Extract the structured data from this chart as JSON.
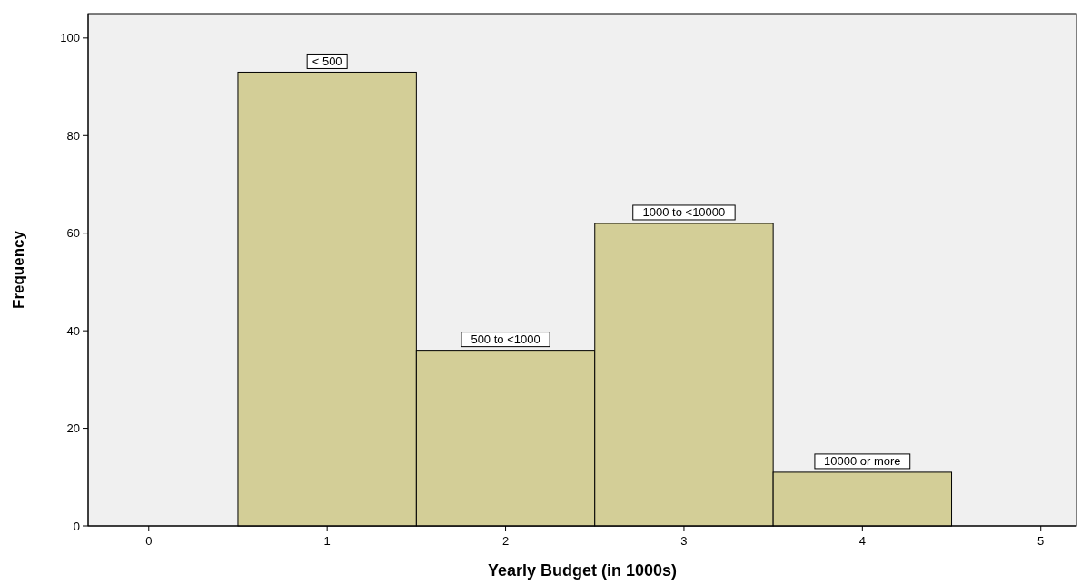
{
  "chart_data": {
    "type": "histogram",
    "xlabel": "Yearly Budget (in 1000s)",
    "ylabel": "Frequency",
    "bins": [
      0.5,
      1.5,
      2.5,
      3.5,
      4.5
    ],
    "values": [
      93,
      36,
      62,
      11
    ],
    "color": "#d3ce97",
    "xlim": [
      -0.34,
      5.2
    ],
    "xticks": [
      0,
      1,
      2,
      3,
      4,
      5
    ],
    "ylim": [
      0,
      105
    ],
    "yticks": [
      0,
      20,
      40,
      60,
      80,
      100
    ],
    "grid": false,
    "annotations": [
      {
        "text": "< 500",
        "x": 1,
        "y": 93
      },
      {
        "text": "500 to <1000",
        "x": 2,
        "y": 36
      },
      {
        "text": "1000 to <10000",
        "x": 3,
        "y": 62
      },
      {
        "text": "10000 or more",
        "x": 4,
        "y": 11
      }
    ]
  }
}
